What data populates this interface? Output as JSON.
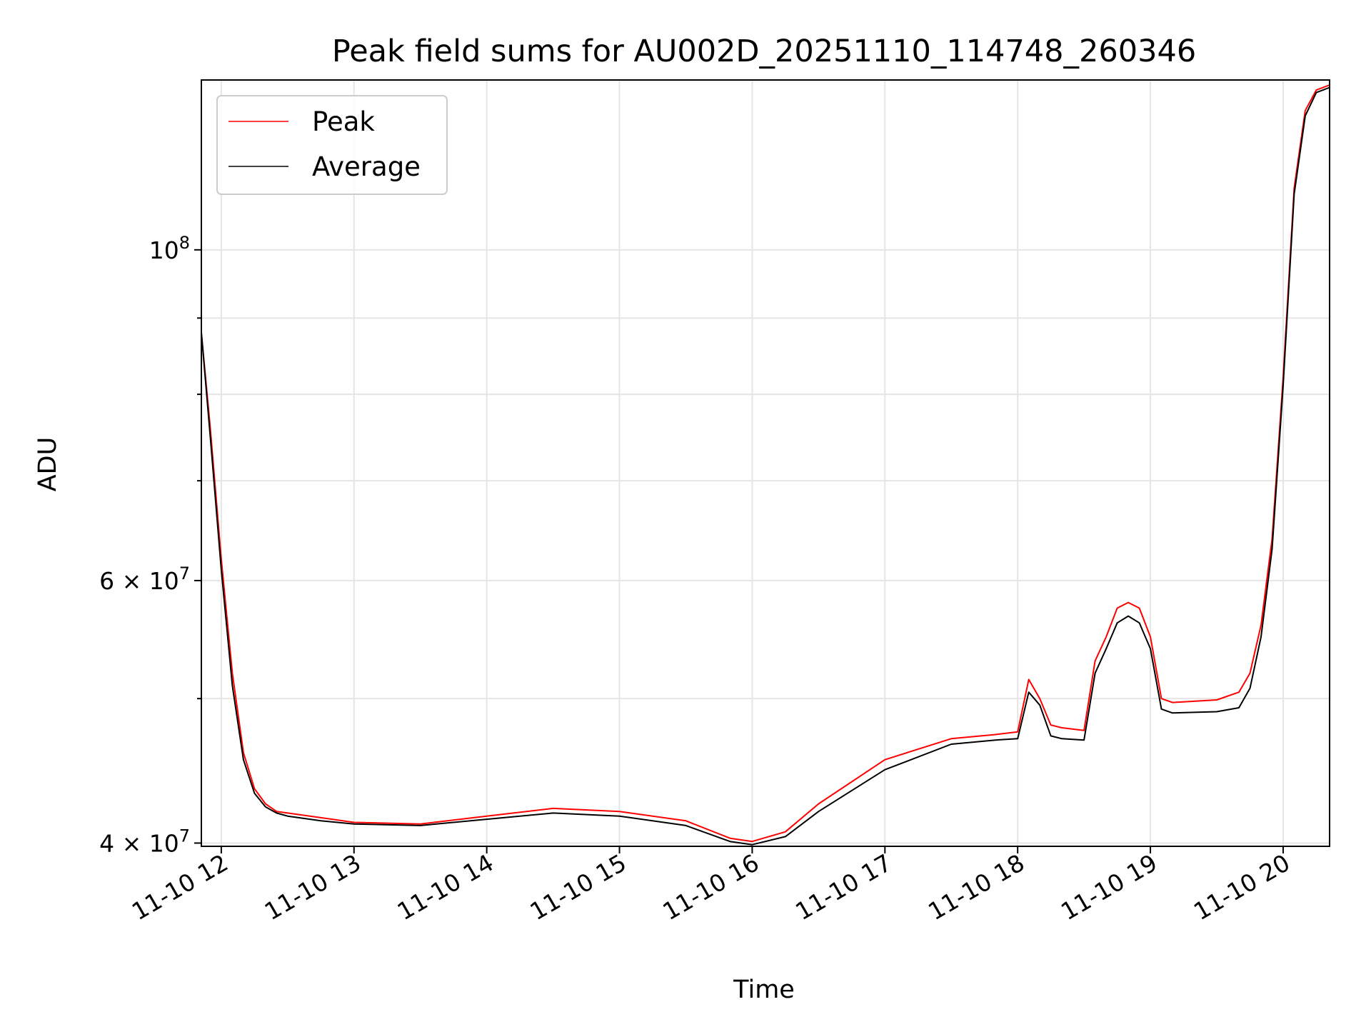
{
  "chart_data": {
    "type": "line",
    "title": "Peak field sums for AU002D_20251110_114748_260346",
    "xlabel": "Time",
    "ylabel": "ADU",
    "x_ticks": [
      "11-10 12",
      "11-10 13",
      "11-10 14",
      "11-10 15",
      "11-10 16",
      "11-10 17",
      "11-10 18",
      "11-10 19",
      "11-10 20"
    ],
    "x_range": [
      "2025-11-10 11:51",
      "2025-11-10 20:21"
    ],
    "y_scale": "log",
    "ylim": [
      39800000,
      130000000
    ],
    "y_major_ticks": [
      {
        "value": 100000000,
        "label_base": "10",
        "label_exp": "8"
      },
      {
        "value": 60000000,
        "label_base": "6 × 10",
        "label_exp": "7"
      },
      {
        "value": 40000000,
        "label_base": "4 × 10",
        "label_exp": "7"
      }
    ],
    "y_minor_ticks": [
      90000000,
      80000000,
      70000000,
      50000000
    ],
    "grid": true,
    "legend_position": "top-left",
    "series": [
      {
        "name": "Peak",
        "color": "#ff0000",
        "x": [
          "11:51",
          "11:55",
          "12:00",
          "12:05",
          "12:10",
          "12:15",
          "12:20",
          "12:25",
          "12:30",
          "12:45",
          "13:00",
          "13:30",
          "14:00",
          "14:30",
          "15:00",
          "15:30",
          "15:50",
          "16:00",
          "16:15",
          "16:30",
          "17:00",
          "17:30",
          "17:50",
          "18:00",
          "18:05",
          "18:10",
          "18:15",
          "18:20",
          "18:30",
          "18:35",
          "18:40",
          "18:45",
          "18:50",
          "18:55",
          "19:00",
          "19:05",
          "19:10",
          "19:30",
          "19:40",
          "19:45",
          "19:50",
          "19:55",
          "20:00",
          "20:05",
          "20:10",
          "20:15",
          "20:21"
        ],
        "y": [
          88000000,
          76000000,
          62000000,
          52000000,
          46000000,
          43500000,
          42500000,
          42000000,
          41900000,
          41600000,
          41300000,
          41200000,
          41700000,
          42200000,
          42000000,
          41400000,
          40300000,
          40100000,
          40700000,
          42500000,
          45500000,
          47000000,
          47300000,
          47500000,
          51500000,
          50000000,
          48000000,
          47800000,
          47600000,
          53000000,
          55000000,
          57500000,
          58000000,
          57500000,
          55000000,
          50000000,
          49700000,
          49900000,
          50500000,
          52000000,
          56000000,
          64000000,
          82000000,
          110000000,
          124000000,
          128000000,
          129000000
        ]
      },
      {
        "name": "Average",
        "color": "#000000",
        "x": [
          "11:51",
          "11:55",
          "12:00",
          "12:05",
          "12:10",
          "12:15",
          "12:20",
          "12:25",
          "12:30",
          "12:45",
          "13:00",
          "13:30",
          "14:00",
          "14:30",
          "15:00",
          "15:30",
          "15:50",
          "16:00",
          "16:15",
          "16:30",
          "17:00",
          "17:30",
          "17:50",
          "18:00",
          "18:05",
          "18:10",
          "18:15",
          "18:20",
          "18:30",
          "18:35",
          "18:40",
          "18:45",
          "18:50",
          "18:55",
          "19:00",
          "19:05",
          "19:10",
          "19:30",
          "19:40",
          "19:45",
          "19:50",
          "19:55",
          "20:00",
          "20:05",
          "20:10",
          "20:15",
          "20:21"
        ],
        "y": [
          88000000,
          75000000,
          61000000,
          51000000,
          45500000,
          43200000,
          42300000,
          41900000,
          41700000,
          41400000,
          41200000,
          41100000,
          41500000,
          41900000,
          41700000,
          41100000,
          40100000,
          39900000,
          40400000,
          42000000,
          44800000,
          46600000,
          46900000,
          47000000,
          50500000,
          49500000,
          47200000,
          47000000,
          46900000,
          52000000,
          54000000,
          56200000,
          56800000,
          56200000,
          54000000,
          49200000,
          48900000,
          49000000,
          49300000,
          50800000,
          55000000,
          63000000,
          81000000,
          109000000,
          123000000,
          127500000,
          128500000
        ]
      }
    ]
  }
}
